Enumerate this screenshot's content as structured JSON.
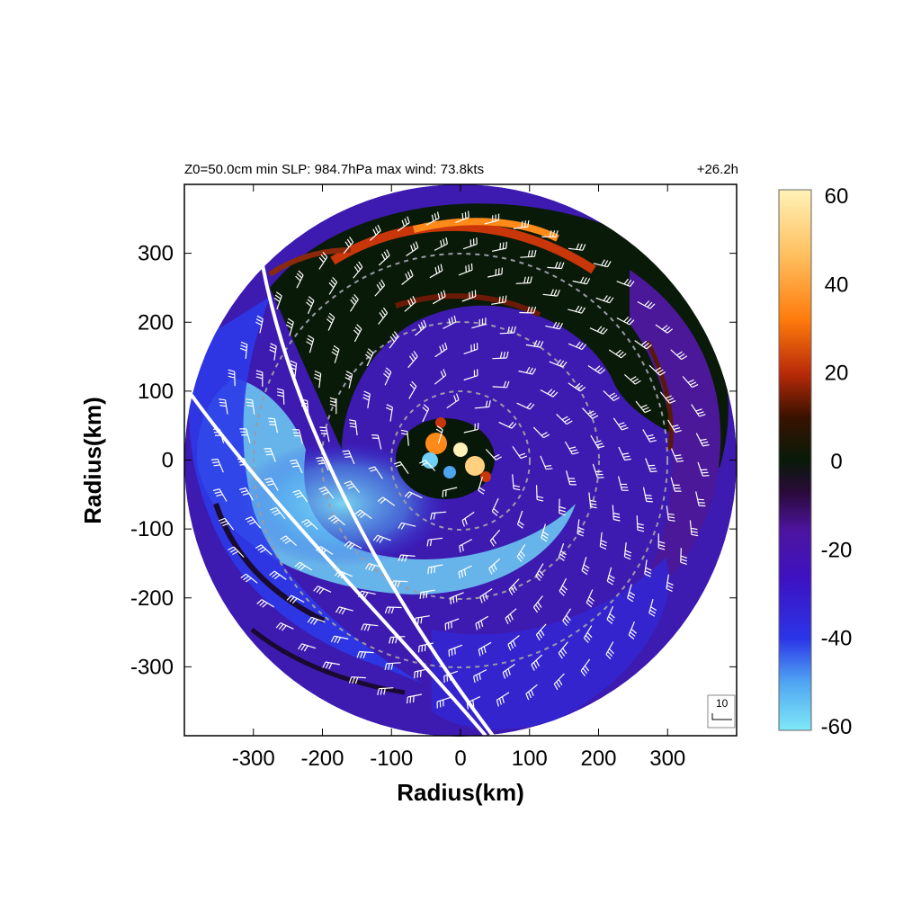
{
  "header": {
    "left": "Z0=50.0cm  min SLP: 984.7hPa   max wind: 73.8kts",
    "right": "+26.2h"
  },
  "chart_data": {
    "type": "heatmap",
    "xlabel": "Radius(km)",
    "ylabel": "Radius(km)",
    "xlim": [
      -400,
      400
    ],
    "ylim": [
      -400,
      400
    ],
    "x_ticks": [
      -300,
      -200,
      -100,
      0,
      100,
      200,
      300
    ],
    "y_ticks": [
      300,
      200,
      100,
      0,
      -100,
      -200,
      -300
    ],
    "domain_radius_km": 400,
    "range_rings_km": [
      100,
      200,
      300
    ],
    "colorbar": {
      "min": -60,
      "max": 60,
      "ticks": [
        60,
        40,
        20,
        0,
        -20,
        -40,
        -60
      ],
      "colors": [
        "#7fe9f7",
        "#4fa4f2",
        "#2b35e8",
        "#3d12c2",
        "#4d14a0",
        "#2a0a3a",
        "#081a08",
        "#3a1200",
        "#b82a08",
        "#ff7b0c",
        "#ffc060",
        "#fff2b8"
      ]
    },
    "wind_barb_legend": "10",
    "features": {
      "inner_core_wind_max": 60,
      "southwest_band_min": -55,
      "northern_band_max": 25
    }
  }
}
